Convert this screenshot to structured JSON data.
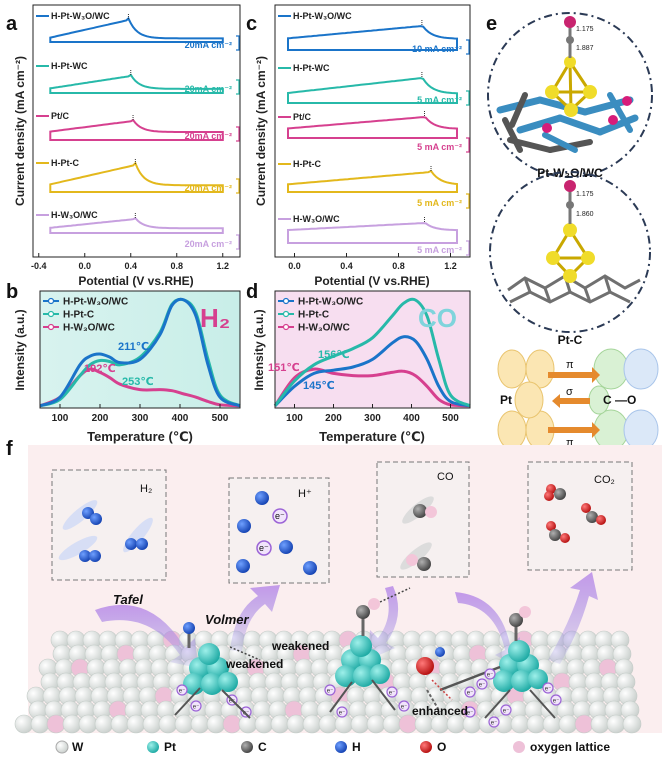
{
  "panels": {
    "a": "a",
    "b": "b",
    "c": "c",
    "d": "d",
    "e": "e",
    "f": "f"
  },
  "colors": {
    "blue": "#1a74c9",
    "teal": "#27b9a9",
    "pink": "#d6408f",
    "yellow": "#e3b81c",
    "violet": "#c7a0df",
    "pt": "#3cc9c3",
    "carbon": "#666666",
    "hydrogen": "#1f5fd1",
    "oxygen": "#d61c1c",
    "olattice": "#eec1d8",
    "tungsten": "#e6e9e8"
  },
  "cv_a": {
    "ylabel": "Current density (mA cm⁻²)",
    "xlabel": "Potential (V vs.RHE)",
    "ticks": [
      "-0.4",
      "0.0",
      "0.4",
      "0.8",
      "1.2"
    ],
    "curves": [
      {
        "name": "H-Pt-W₃O/WC",
        "scale": "20mA cm⁻²"
      },
      {
        "name": "H-Pt-WC",
        "scale": "20mA cm⁻²"
      },
      {
        "name": "Pt/C",
        "scale": "20mA cm⁻²"
      },
      {
        "name": "H-Pt-C",
        "scale": "20mA cm⁻²"
      },
      {
        "name": "H-W₃O/WC",
        "scale": "20mA cm⁻²"
      }
    ]
  },
  "cv_c": {
    "ylabel": "Current density (mA cm⁻²)",
    "xlabel": "Potential (V vs.RHE)",
    "ticks": [
      "0.0",
      "0.4",
      "0.8",
      "1.2"
    ],
    "curves": [
      {
        "name": "H-Pt-W₃O/WC",
        "scale": "10 mA cm⁻²"
      },
      {
        "name": "H-Pt-WC",
        "scale": "5 mA cm⁻²"
      },
      {
        "name": "Pt/C",
        "scale": "5 mA cm⁻²"
      },
      {
        "name": "H-Pt-C",
        "scale": "5 mA cm⁻²"
      },
      {
        "name": "H-W₃O/WC",
        "scale": "5 mA cm⁻²"
      }
    ]
  },
  "tpd_b": {
    "gas": "H₂",
    "ylabel": "Intensity (a.u.)",
    "xlabel": "Temperature (℃)",
    "ticks": [
      "100",
      "200",
      "300",
      "400",
      "500"
    ],
    "legend": [
      "H-Pt-W₃O/WC",
      "H-Pt-C",
      "H-W₃O/WC"
    ],
    "annotations": [
      "211℃",
      "192℃",
      "253℃"
    ]
  },
  "tpd_d": {
    "gas": "CO",
    "ylabel": "Intensity (a.u.)",
    "xlabel": "Temperature (℃)",
    "ticks": [
      "100",
      "200",
      "300",
      "400",
      "500"
    ],
    "legend": [
      "H-Pt-W₃O/WC",
      "H-Pt-C",
      "H-W₃O/WC"
    ],
    "annotations": [
      "151℃",
      "156℃",
      "145℃"
    ]
  },
  "dft": {
    "label1": "Pt-W₃O/WC",
    "label2": "Pt-C",
    "d1a": "1.175",
    "d1b": "1.887",
    "d2a": "1.175",
    "d2b": "1.860"
  },
  "orbital": {
    "pt": "Pt",
    "co": "C —O",
    "pi": "π",
    "sigma": "σ",
    "pi2": "π"
  },
  "scheme": {
    "h2": "H₂",
    "hplus": "H⁺",
    "eminus": "e⁻",
    "co": "CO",
    "co2": "CO₂",
    "tafel": "Tafel",
    "volmer": "Volmer",
    "weakened1": "weakened",
    "weakened2": "weakened",
    "enhanced": "enhanced",
    "e_small": "e⁻"
  },
  "legend_f": [
    "W",
    "Pt",
    "C",
    "H",
    "O",
    "oxygen lattice"
  ],
  "chart_data": [
    {
      "type": "line",
      "panel": "a",
      "title": "",
      "xlabel": "Potential (V vs.RHE)",
      "ylabel": "Current density (mA cm-2)",
      "xlim": [
        -0.45,
        1.35
      ],
      "series": [
        {
          "name": "H-Pt-W3O/WC",
          "peak_potential": 0.38,
          "scale_bar": "20mA cm-2"
        },
        {
          "name": "H-Pt-WC",
          "peak_potential": 0.4,
          "scale_bar": "20mA cm-2"
        },
        {
          "name": "Pt/C",
          "peak_potential": 0.42,
          "scale_bar": "20mA cm-2"
        },
        {
          "name": "H-Pt-C",
          "peak_potential": 0.44,
          "scale_bar": "20mA cm-2"
        },
        {
          "name": "H-W3O/WC",
          "peak_potential": 0.44,
          "scale_bar": "20mA cm-2"
        }
      ]
    },
    {
      "type": "line",
      "panel": "c",
      "title": "",
      "xlabel": "Potential (V vs.RHE)",
      "ylabel": "Current density (mA cm-2)",
      "xlim": [
        -0.15,
        1.35
      ],
      "series": [
        {
          "name": "H-Pt-W3O/WC",
          "peak_potential": 0.98,
          "scale_bar": "10 mA cm-2"
        },
        {
          "name": "H-Pt-WC",
          "peak_potential": 0.98,
          "scale_bar": "5 mA cm-2"
        },
        {
          "name": "Pt/C",
          "peak_potential": 1.0,
          "scale_bar": "5 mA cm-2"
        },
        {
          "name": "H-Pt-C",
          "peak_potential": 1.05,
          "scale_bar": "5 mA cm-2"
        },
        {
          "name": "H-W3O/WC",
          "peak_potential": 1.0,
          "scale_bar": "5 mA cm-2"
        }
      ]
    },
    {
      "type": "line",
      "panel": "b",
      "title": "H2",
      "xlabel": "Temperature (°C)",
      "ylabel": "Intensity (a.u.)",
      "xlim": [
        50,
        550
      ],
      "x": [
        50,
        100,
        150,
        175,
        200,
        225,
        250,
        300,
        350,
        380,
        410,
        440,
        470,
        500,
        550
      ],
      "series": [
        {
          "name": "H-Pt-W3O/WC",
          "values": [
            0.02,
            0.1,
            0.4,
            0.48,
            0.5,
            0.47,
            0.42,
            0.45,
            0.68,
            0.95,
            1.0,
            0.85,
            0.4,
            0.1,
            0.02
          ]
        },
        {
          "name": "H-Pt-C",
          "values": [
            0.02,
            0.08,
            0.3,
            0.4,
            0.44,
            0.43,
            0.4,
            0.47,
            0.7,
            0.96,
            1.0,
            0.88,
            0.45,
            0.12,
            0.02
          ]
        },
        {
          "name": "H-W3O/WC",
          "values": [
            0.02,
            0.1,
            0.3,
            0.36,
            0.33,
            0.28,
            0.22,
            0.17,
            0.17,
            0.16,
            0.13,
            0.1,
            0.06,
            0.03,
            0.02
          ]
        }
      ],
      "annotations": [
        "211°C",
        "192°C",
        "253°C"
      ]
    },
    {
      "type": "line",
      "panel": "d",
      "title": "CO",
      "xlabel": "Temperature (°C)",
      "ylabel": "Intensity (a.u.)",
      "xlim": [
        50,
        550
      ],
      "x": [
        50,
        100,
        150,
        200,
        250,
        300,
        350,
        380,
        410,
        440,
        470,
        500,
        550
      ],
      "series": [
        {
          "name": "H-Pt-W3O/WC",
          "values": [
            0.02,
            0.2,
            0.32,
            0.35,
            0.38,
            0.45,
            0.6,
            0.66,
            0.62,
            0.45,
            0.2,
            0.06,
            0.02
          ]
        },
        {
          "name": "H-Pt-C",
          "values": [
            0.02,
            0.25,
            0.4,
            0.48,
            0.55,
            0.65,
            0.85,
            0.97,
            1.0,
            0.85,
            0.45,
            0.12,
            0.02
          ]
        },
        {
          "name": "H-W3O/WC",
          "values": [
            0.02,
            0.28,
            0.36,
            0.32,
            0.3,
            0.3,
            0.33,
            0.34,
            0.3,
            0.2,
            0.08,
            0.03,
            0.02
          ]
        }
      ],
      "annotations": [
        "151°C",
        "156°C",
        "145°C"
      ]
    }
  ]
}
